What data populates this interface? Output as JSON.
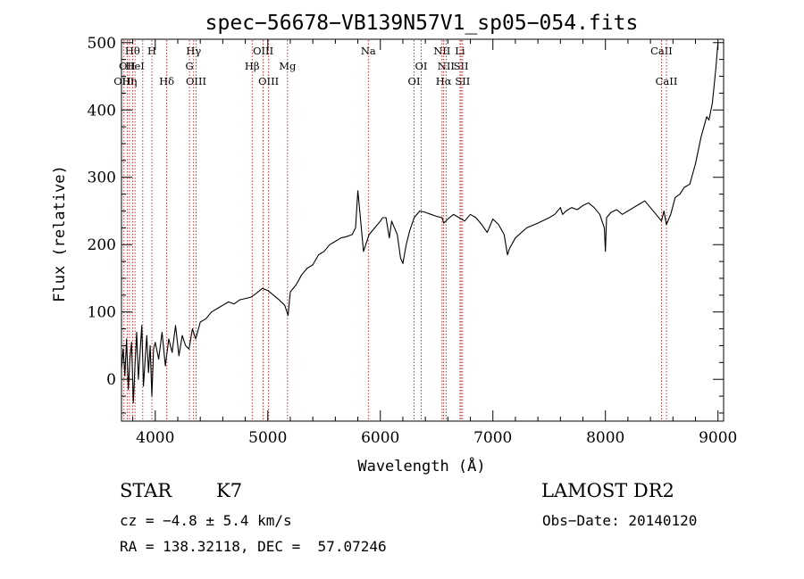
{
  "chart_data": {
    "type": "line",
    "title": "spec−56678−VB139N57V1_sp05−054.fits",
    "xlabel": "Wavelength (Å)",
    "ylabel": "Flux (relative)",
    "xlim": [
      3700,
      9050
    ],
    "ylim": [
      -62,
      505
    ],
    "xticks": [
      4000,
      5000,
      6000,
      7000,
      8000,
      9000
    ],
    "yticks": [
      0,
      100,
      200,
      300,
      400,
      500
    ],
    "grid": false,
    "series": [
      {
        "x": [
          3700,
          3715,
          3730,
          3745,
          3760,
          3775,
          3790,
          3805,
          3820,
          3835,
          3850,
          3865,
          3880,
          3895,
          3910,
          3925,
          3940,
          3955,
          3970,
          3985,
          4000,
          4030,
          4060,
          4090,
          4120,
          4150,
          4180,
          4210,
          4240,
          4270,
          4300,
          4330,
          4360,
          4400,
          4450,
          4500,
          4550,
          4600,
          4650,
          4700,
          4750,
          4800,
          4850,
          4900,
          4950,
          5000,
          5050,
          5100,
          5150,
          5180,
          5200,
          5250,
          5300,
          5350,
          5400,
          5450,
          5500,
          5550,
          5600,
          5650,
          5700,
          5750,
          5780,
          5800,
          5850,
          5890,
          5900,
          5950,
          6000,
          6020,
          6050,
          6080,
          6100,
          6150,
          6180,
          6200,
          6230,
          6260,
          6300,
          6350,
          6400,
          6450,
          6500,
          6550,
          6563,
          6600,
          6650,
          6700,
          6750,
          6800,
          6850,
          6900,
          6950,
          7000,
          7050,
          7100,
          7130,
          7150,
          7200,
          7300,
          7400,
          7500,
          7550,
          7600,
          7620,
          7650,
          7700,
          7750,
          7800,
          7850,
          7900,
          7950,
          7990,
          8000,
          8010,
          8050,
          8100,
          8150,
          8200,
          8250,
          8300,
          8350,
          8400,
          8450,
          8498,
          8520,
          8542,
          8580,
          8620,
          8662,
          8700,
          8750,
          8800,
          8850,
          8900,
          8920,
          8950,
          8980,
          9000
        ],
        "y": [
          15,
          45,
          5,
          60,
          -15,
          30,
          55,
          -35,
          20,
          70,
          0,
          40,
          80,
          -10,
          30,
          65,
          10,
          50,
          -25,
          45,
          55,
          30,
          70,
          20,
          60,
          40,
          80,
          35,
          65,
          50,
          45,
          75,
          60,
          85,
          90,
          100,
          105,
          110,
          115,
          112,
          118,
          120,
          122,
          128,
          135,
          132,
          125,
          118,
          110,
          95,
          130,
          140,
          155,
          165,
          170,
          185,
          190,
          200,
          205,
          210,
          212,
          215,
          225,
          280,
          190,
          210,
          215,
          225,
          235,
          240,
          240,
          210,
          235,
          215,
          180,
          172,
          200,
          220,
          240,
          250,
          248,
          245,
          242,
          240,
          232,
          238,
          245,
          240,
          235,
          245,
          240,
          230,
          218,
          238,
          230,
          215,
          185,
          195,
          210,
          225,
          232,
          240,
          245,
          255,
          245,
          250,
          255,
          252,
          258,
          262,
          255,
          245,
          225,
          190,
          240,
          248,
          252,
          245,
          250,
          255,
          260,
          265,
          255,
          245,
          235,
          250,
          230,
          245,
          270,
          275,
          285,
          290,
          320,
          360,
          390,
          385,
          410,
          460,
          500
        ]
      }
    ],
    "lines": [
      {
        "x": 3722,
        "row": 3,
        "label": "OIII"
      },
      {
        "x": 3750,
        "row": 2,
        "label": "OII"
      },
      {
        "x": 3771,
        "row": 3,
        "label": "Hη"
      },
      {
        "x": 3798,
        "row": 1,
        "label": "Hθ"
      },
      {
        "x": 3820,
        "row": 2,
        "label": "HeI"
      },
      {
        "x": 3889,
        "row": 1,
        "label": ""
      },
      {
        "x": 3970,
        "row": 1,
        "label": "H"
      },
      {
        "x": 4102,
        "row": 3,
        "label": "Hδ"
      },
      {
        "x": 4304,
        "row": 2,
        "label": "G"
      },
      {
        "x": 4341,
        "row": 1,
        "label": "Hγ"
      },
      {
        "x": 4363,
        "row": 3,
        "label": "OIII"
      },
      {
        "x": 4861,
        "row": 2,
        "label": "Hβ"
      },
      {
        "x": 4959,
        "row": 1,
        "label": "OIII"
      },
      {
        "x": 5007,
        "row": 3,
        "label": "OIII"
      },
      {
        "x": 5175,
        "row": 2,
        "label": "Mg"
      },
      {
        "x": 5893,
        "row": 1,
        "label": "Na"
      },
      {
        "x": 6300,
        "row": 3,
        "label": "OI"
      },
      {
        "x": 6363,
        "row": 2,
        "label": "OI"
      },
      {
        "x": 6548,
        "row": 1,
        "label": "NII"
      },
      {
        "x": 6563,
        "row": 3,
        "label": "Hα"
      },
      {
        "x": 6584,
        "row": 2,
        "label": "NII"
      },
      {
        "x": 6708,
        "row": 1,
        "label": "Li"
      },
      {
        "x": 6717,
        "row": 2,
        "label": "SII"
      },
      {
        "x": 6731,
        "row": 3,
        "label": "SII"
      },
      {
        "x": 8498,
        "row": 1,
        "label": "CaII"
      },
      {
        "x": 8542,
        "row": 3,
        "label": "CaII"
      }
    ]
  },
  "info": {
    "class": "STAR",
    "subclass": "K7",
    "survey": "LAMOST DR2",
    "cz": "cz = −4.8 ± 5.4 km/s",
    "obs_date": "Obs−Date: 20140120",
    "radec": "RA = 138.32118, DEC =  57.07246"
  }
}
